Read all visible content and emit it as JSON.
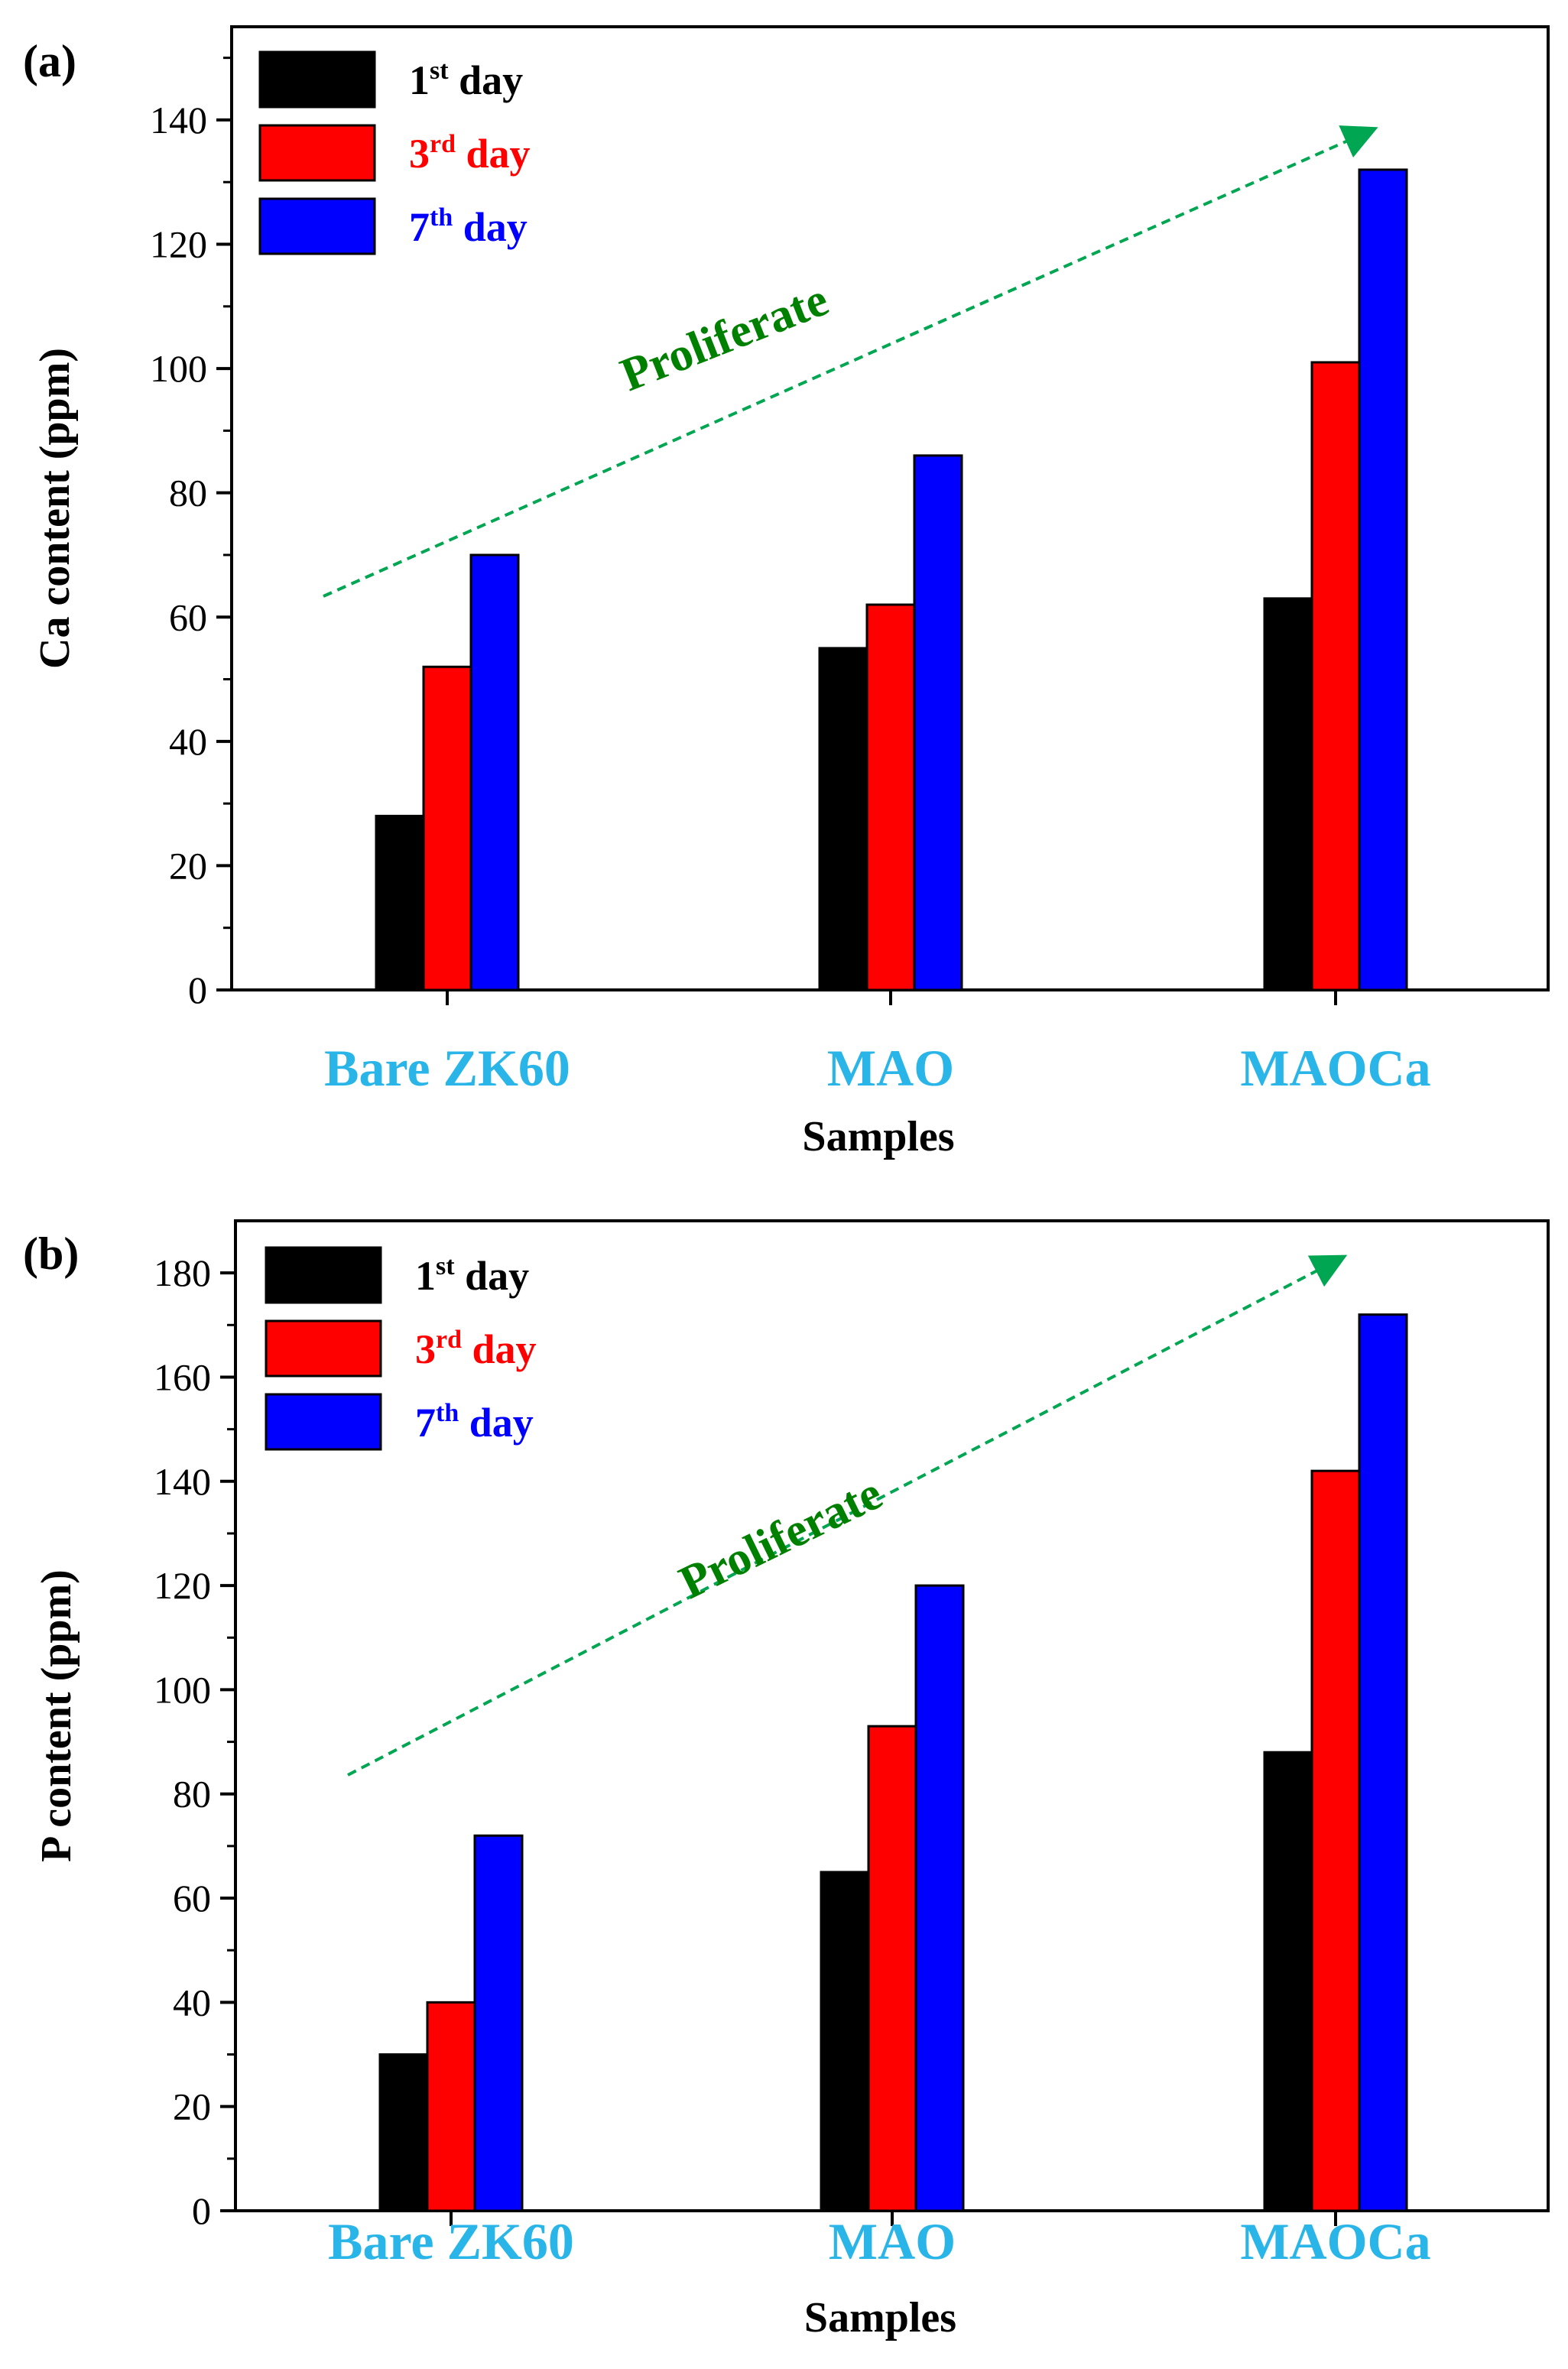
{
  "chart_data": [
    {
      "type": "bar",
      "panel_label": "(a)",
      "categories": [
        "Bare ZK60",
        "MAO",
        "MAOCa"
      ],
      "series": [
        {
          "name": "1st day",
          "num": "1",
          "sup": "st",
          "word": "day",
          "color": "#000000",
          "values": [
            28,
            55,
            63
          ]
        },
        {
          "name": "3rd day",
          "num": "3",
          "sup": "rd",
          "word": "day",
          "color": "#ff0000",
          "values": [
            52,
            62,
            101
          ]
        },
        {
          "name": "7th day",
          "num": "7",
          "sup": "th",
          "word": "day",
          "color": "#0000ff",
          "values": [
            70,
            86,
            132
          ]
        }
      ],
      "xlabel": "Samples",
      "ylabel": "Ca content (ppm)",
      "ylim": [
        0,
        155
      ],
      "yticks": [
        0,
        20,
        40,
        60,
        80,
        100,
        120,
        140
      ],
      "annotation": {
        "text": "Proliferate",
        "color": "#008000",
        "arrow_color": "#00a651"
      },
      "category_label_color": "#29b5e8"
    },
    {
      "type": "bar",
      "panel_label": "(b)",
      "categories": [
        "Bare ZK60",
        "MAO",
        "MAOCa"
      ],
      "series": [
        {
          "name": "1st day",
          "num": "1",
          "sup": "st",
          "word": "day",
          "color": "#000000",
          "values": [
            30,
            65,
            88
          ]
        },
        {
          "name": "3rd day",
          "num": "3",
          "sup": "rd",
          "word": "day",
          "color": "#ff0000",
          "values": [
            40,
            93,
            142
          ]
        },
        {
          "name": "7th day",
          "num": "7",
          "sup": "th",
          "word": "day",
          "color": "#0000ff",
          "values": [
            72,
            120,
            172
          ]
        }
      ],
      "xlabel": "Samples",
      "ylabel": "P content (ppm)",
      "ylim": [
        0,
        190
      ],
      "yticks": [
        0,
        20,
        40,
        60,
        80,
        100,
        120,
        140,
        160,
        180
      ],
      "annotation": {
        "text": "Proliferate",
        "color": "#008000",
        "arrow_color": "#00a651"
      },
      "category_label_color": "#29b5e8"
    }
  ]
}
